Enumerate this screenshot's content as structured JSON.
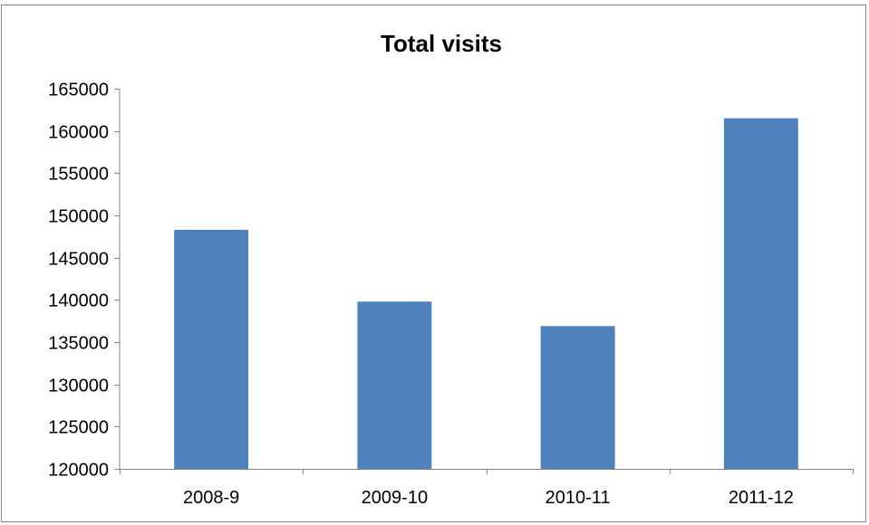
{
  "chart_data": {
    "type": "bar",
    "title": "Total visits",
    "xlabel": "",
    "ylabel": "",
    "categories": [
      "2008-9",
      "2009-10",
      "2010-11",
      "2011-12"
    ],
    "values": [
      148300,
      139800,
      136900,
      161500
    ],
    "ylim": [
      120000,
      165000
    ],
    "yticks": [
      120000,
      125000,
      130000,
      135000,
      140000,
      145000,
      150000,
      155000,
      160000,
      165000
    ],
    "grid": false,
    "legend": "none",
    "bar_color": "#4F81BD",
    "axis_color": "#868686"
  }
}
